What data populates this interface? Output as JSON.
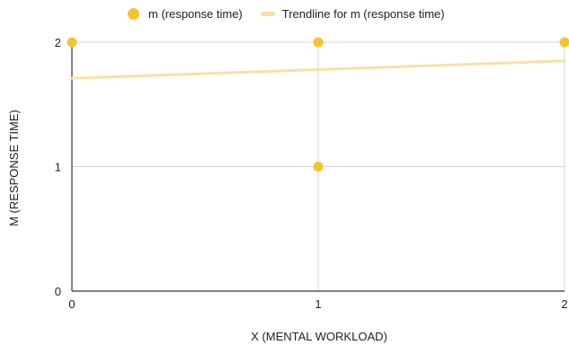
{
  "chart_data": {
    "type": "scatter",
    "xlabel": "X (MENTAL WORKLOAD)",
    "ylabel": "M (RESPONSE TIME)",
    "xlim": [
      0,
      2
    ],
    "ylim": [
      0,
      2
    ],
    "x_ticks": [
      "0",
      "1",
      "2"
    ],
    "y_ticks": [
      "0",
      "1",
      "2"
    ],
    "grid": true,
    "legend_position": "top",
    "series": [
      {
        "name": "m (response time)",
        "color": "#F4C430",
        "points": [
          {
            "x": 0,
            "y": 2
          },
          {
            "x": 1,
            "y": 2
          },
          {
            "x": 1,
            "y": 1
          },
          {
            "x": 2,
            "y": 2
          }
        ]
      }
    ],
    "trendline": {
      "name": "Trendline for m (response time)",
      "color": "#F8E1A4",
      "start": {
        "x": 0,
        "y": 1.71
      },
      "end": {
        "x": 2,
        "y": 1.85
      }
    }
  }
}
